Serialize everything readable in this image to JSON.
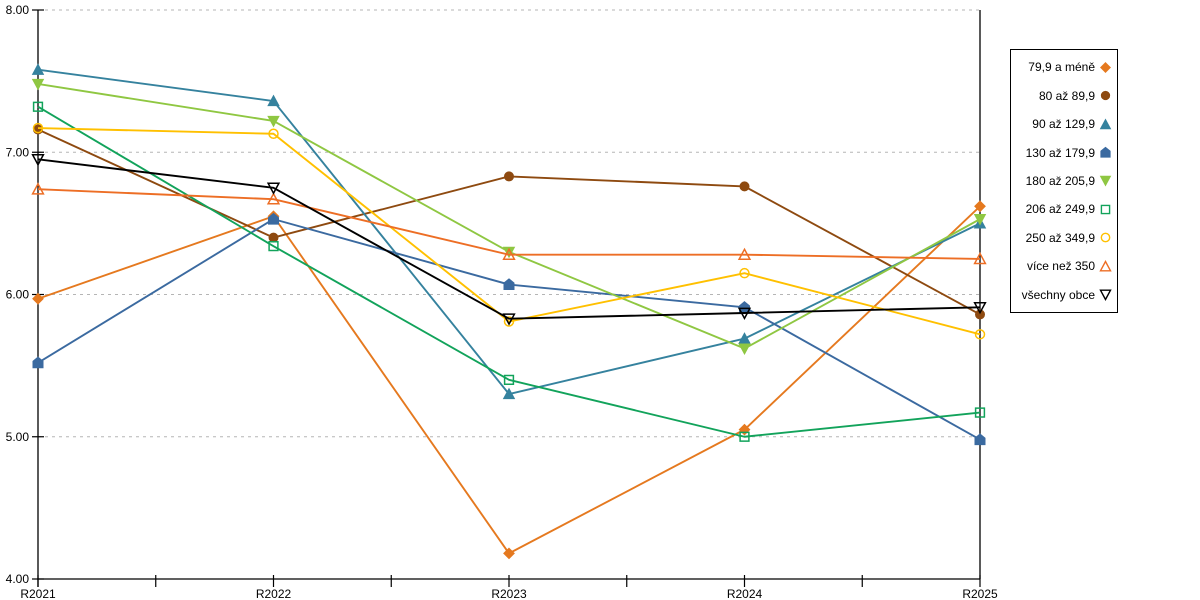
{
  "chart_data": {
    "type": "line",
    "title": "",
    "xlabel": "",
    "ylabel": "",
    "x": [
      "R2021",
      "R2022",
      "R2023",
      "R2024",
      "R2025"
    ],
    "ylim": [
      4.0,
      8.0
    ],
    "y_tick_labels": [
      "8.00",
      "7.00",
      "6.00",
      "5.00",
      "4.00"
    ],
    "y_tick_values": [
      8,
      7,
      6,
      5,
      4
    ],
    "grid": "horizontal-dashed",
    "legend_position": "right",
    "series": [
      {
        "name": "79,9 a méně",
        "marker": "diamond",
        "marker_fill": "solid",
        "color": "#E5791F",
        "values": [
          5.97,
          6.55,
          4.18,
          5.05,
          6.62
        ]
      },
      {
        "name": "80 až 89,9",
        "marker": "circle",
        "marker_fill": "solid",
        "color": "#8E4A10",
        "values": [
          7.16,
          6.4,
          6.83,
          6.76,
          5.86
        ]
      },
      {
        "name": "90 až 129,9",
        "marker": "triangle-up",
        "marker_fill": "solid",
        "color": "#35829E",
        "values": [
          7.58,
          7.36,
          5.3,
          5.69,
          6.5
        ]
      },
      {
        "name": "130 až 179,9",
        "marker": "pentagon",
        "marker_fill": "solid",
        "color": "#3B6AA0",
        "values": [
          5.52,
          6.53,
          6.07,
          5.91,
          4.98
        ]
      },
      {
        "name": "180 až 205,9",
        "marker": "triangle-down",
        "marker_fill": "solid",
        "color": "#8FC742",
        "values": [
          7.48,
          7.22,
          6.3,
          5.62,
          6.53
        ]
      },
      {
        "name": "206 až 249,9",
        "marker": "square",
        "marker_fill": "open",
        "color": "#12A35B",
        "values": [
          7.32,
          6.34,
          5.4,
          5.0,
          5.17
        ]
      },
      {
        "name": "250 až 349,9",
        "marker": "circle",
        "marker_fill": "open",
        "color": "#FFC000",
        "values": [
          7.17,
          7.13,
          5.81,
          6.15,
          5.72
        ]
      },
      {
        "name": "více než 350",
        "marker": "triangle-up",
        "marker_fill": "open",
        "color": "#ED6E25",
        "values": [
          6.74,
          6.67,
          6.28,
          6.28,
          6.25
        ]
      },
      {
        "name": "všechny obce",
        "marker": "triangle-down",
        "marker_fill": "open",
        "color": "#000000",
        "values": [
          6.95,
          6.75,
          5.83,
          5.87,
          5.91
        ]
      }
    ]
  }
}
